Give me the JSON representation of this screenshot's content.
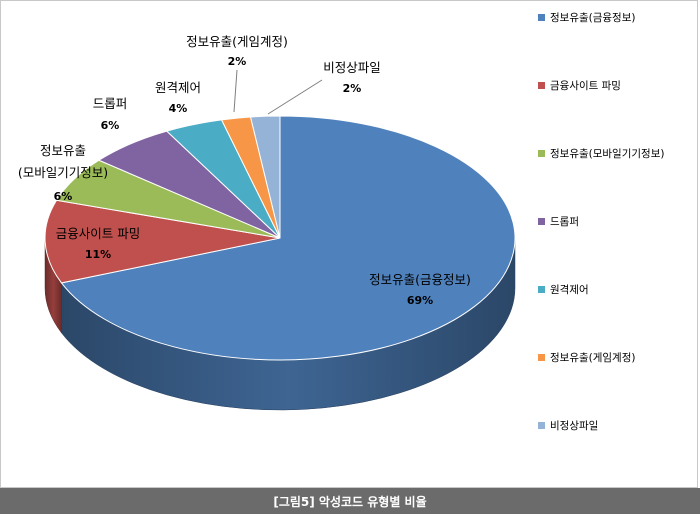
{
  "caption": "[그림5] 악성코드 유형별 비율",
  "chart_data": {
    "type": "pie",
    "style": "3d",
    "legend_position": "right",
    "slices": [
      {
        "name": "정보유출(금융정보)",
        "label_lines": [
          "정보유출(금융정보)"
        ],
        "value": 69,
        "value_label": "69%",
        "color": "#4f81bd"
      },
      {
        "name": "금융사이트 파밍",
        "label_lines": [
          "금융사이트 파밍"
        ],
        "value": 11,
        "value_label": "11%",
        "color": "#c0504d"
      },
      {
        "name": "정보유출(모바일기기정보)",
        "label_lines": [
          "정보유출",
          "(모바일기기정보)"
        ],
        "value": 6,
        "value_label": "6%",
        "color": "#9bbb59"
      },
      {
        "name": "드롭퍼",
        "label_lines": [
          "드롭퍼"
        ],
        "value": 6,
        "value_label": "6%",
        "color": "#8064a2"
      },
      {
        "name": "원격제어",
        "label_lines": [
          "원격제어"
        ],
        "value": 4,
        "value_label": "4%",
        "color": "#4bacc6"
      },
      {
        "name": "정보유출(게임계정)",
        "label_lines": [
          "정보유출(게임계정)"
        ],
        "value": 2,
        "value_label": "2%",
        "color": "#f79646"
      },
      {
        "name": "비정상파일",
        "label_lines": [
          "비정상파일"
        ],
        "value": 2,
        "value_label": "2%",
        "color": "#95b3d7"
      }
    ]
  }
}
